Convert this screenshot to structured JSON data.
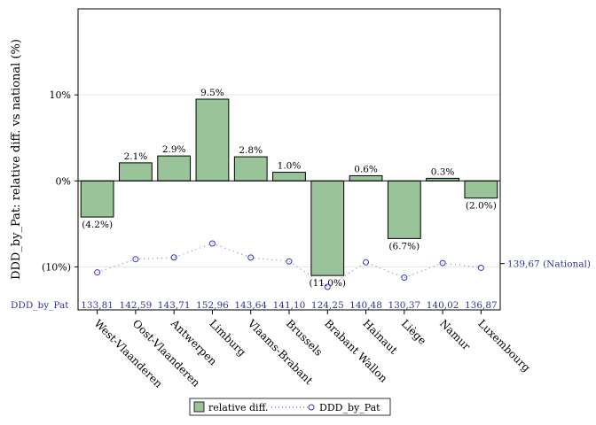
{
  "chart_data": {
    "type": "bar",
    "ylabel": "DDD_by_Pat: relative diff. vs national (%)",
    "ylim": [
      -15,
      20
    ],
    "yticks": [
      {
        "value": 10,
        "label": "10%"
      },
      {
        "value": 0,
        "label": "0%"
      },
      {
        "value": -10,
        "label": "(10%)"
      }
    ],
    "grid": true,
    "categories": [
      "West-Vlaanderen",
      "Oost-Vlaanderen",
      "Antwerpen",
      "Limburg",
      "Vlaams-Brabant",
      "Brussels",
      "Brabant Wallon",
      "Hainaut",
      "Liège",
      "Namur",
      "Luxembourg"
    ],
    "series": [
      {
        "name": "relative diff.",
        "kind": "bar",
        "color": "#99c49a",
        "values": [
          -4.2,
          2.1,
          2.9,
          9.5,
          2.8,
          1.0,
          -11.0,
          0.6,
          -6.7,
          0.3,
          -2.0
        ],
        "labels": [
          "(4.2%)",
          "2.1%",
          "2.9%",
          "9.5%",
          "2.8%",
          "1.0%",
          "(11.0%)",
          "0.6%",
          "(6.7%)",
          "0.3%",
          "(2.0%)"
        ]
      },
      {
        "name": "DDD_by_Pat",
        "kind": "dotted-line",
        "color": "#3333cc",
        "values": [
          133.81,
          142.59,
          143.71,
          152.96,
          143.64,
          141.1,
          124.25,
          140.48,
          130.37,
          140.02,
          136.87
        ],
        "labels": [
          "133,81",
          "142,59",
          "143,71",
          "152,96",
          "143,64",
          "141,10",
          "124,25",
          "140,48",
          "130,37",
          "140,02",
          "136,87"
        ]
      }
    ],
    "reference": {
      "value": 139.67,
      "label": "139,67 (National)"
    },
    "table_row_label": "DDD_by_Pat",
    "legend": {
      "position": "bottom",
      "items": [
        "relative diff.",
        "DDD_by_Pat"
      ]
    }
  }
}
